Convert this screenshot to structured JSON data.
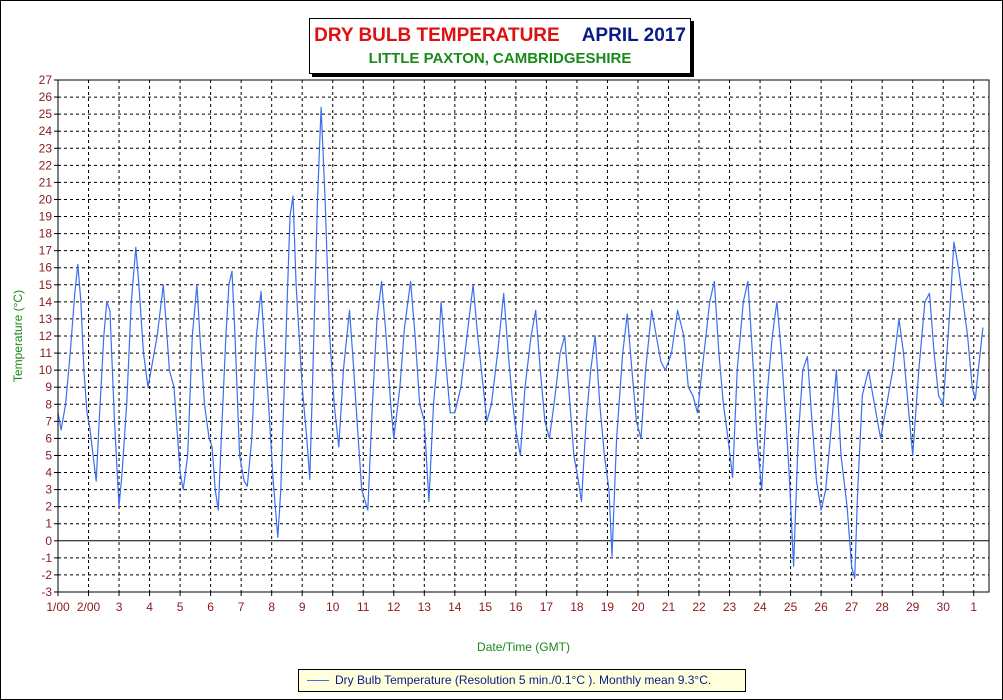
{
  "title": {
    "main": "DRY BULB TEMPERATURE",
    "period": "APRIL 2017",
    "location": "LITTLE PAXTON, CAMBRIDGESHIRE"
  },
  "legend": {
    "label": "Dry Bulb Temperature (Resolution 5 min./0.1°C ). Monthly mean 9.3°C."
  },
  "colors": {
    "series": "#3b6ef0",
    "title_red": "#e01010",
    "title_navy": "#0a1a8a",
    "location_green": "#1a8a1a",
    "axis_label_green": "#1a8a1a",
    "tick_label": "#8b1a1a",
    "legend_bg": "#ffffdc"
  },
  "chart_data": {
    "type": "line",
    "title": "DRY BULB TEMPERATURE APRIL 2017",
    "subtitle": "LITTLE PAXTON, CAMBRIDGESHIRE",
    "xlabel": "Date/Time (GMT)",
    "ylabel": "Temperature (°C)",
    "ylim": [
      -3,
      27
    ],
    "yticks": [
      -3,
      -2,
      -1,
      0,
      1,
      2,
      3,
      4,
      5,
      6,
      7,
      8,
      9,
      10,
      11,
      12,
      13,
      14,
      15,
      16,
      17,
      18,
      19,
      20,
      21,
      22,
      23,
      24,
      25,
      26,
      27
    ],
    "xlim": [
      1,
      31.5
    ],
    "xticks": [
      {
        "x": 1,
        "label": "1/00"
      },
      {
        "x": 2,
        "label": "2/00"
      },
      {
        "x": 3,
        "label": "3"
      },
      {
        "x": 4,
        "label": "4"
      },
      {
        "x": 5,
        "label": "5"
      },
      {
        "x": 6,
        "label": "6"
      },
      {
        "x": 7,
        "label": "7"
      },
      {
        "x": 8,
        "label": "8"
      },
      {
        "x": 9,
        "label": "9"
      },
      {
        "x": 10,
        "label": "10"
      },
      {
        "x": 11,
        "label": "11"
      },
      {
        "x": 12,
        "label": "12"
      },
      {
        "x": 13,
        "label": "13"
      },
      {
        "x": 14,
        "label": "14"
      },
      {
        "x": 15,
        "label": "15"
      },
      {
        "x": 16,
        "label": "16"
      },
      {
        "x": 17,
        "label": "17"
      },
      {
        "x": 18,
        "label": "18"
      },
      {
        "x": 19,
        "label": "19"
      },
      {
        "x": 20,
        "label": "20"
      },
      {
        "x": 21,
        "label": "21"
      },
      {
        "x": 22,
        "label": "22"
      },
      {
        "x": 23,
        "label": "23"
      },
      {
        "x": 24,
        "label": "24"
      },
      {
        "x": 25,
        "label": "25"
      },
      {
        "x": 26,
        "label": "26"
      },
      {
        "x": 27,
        "label": "27"
      },
      {
        "x": 28,
        "label": "28"
      },
      {
        "x": 29,
        "label": "29"
      },
      {
        "x": 30,
        "label": "30"
      },
      {
        "x": 31,
        "label": "1"
      }
    ],
    "grid": true,
    "zero_line": true,
    "series": [
      {
        "name": "Dry Bulb Temperature",
        "points": [
          [
            1.0,
            7.5
          ],
          [
            1.1,
            6.5
          ],
          [
            1.25,
            8.0
          ],
          [
            1.4,
            11.0
          ],
          [
            1.55,
            14.5
          ],
          [
            1.65,
            16.2
          ],
          [
            1.75,
            14.0
          ],
          [
            1.85,
            10.0
          ],
          [
            1.95,
            7.5
          ],
          [
            2.05,
            6.5
          ],
          [
            2.15,
            5.0
          ],
          [
            2.25,
            3.5
          ],
          [
            2.35,
            7.0
          ],
          [
            2.5,
            12.0
          ],
          [
            2.6,
            14.0
          ],
          [
            2.7,
            13.5
          ],
          [
            2.85,
            7.0
          ],
          [
            3.0,
            2.0
          ],
          [
            3.1,
            4.0
          ],
          [
            3.25,
            8.0
          ],
          [
            3.4,
            14.0
          ],
          [
            3.55,
            17.2
          ],
          [
            3.65,
            15.0
          ],
          [
            3.8,
            11.0
          ],
          [
            3.95,
            9.0
          ],
          [
            4.1,
            10.5
          ],
          [
            4.25,
            12.0
          ],
          [
            4.45,
            15.0
          ],
          [
            4.55,
            12.5
          ],
          [
            4.65,
            10.0
          ],
          [
            4.8,
            9.0
          ],
          [
            5.0,
            4.0
          ],
          [
            5.1,
            3.0
          ],
          [
            5.25,
            5.0
          ],
          [
            5.4,
            12.0
          ],
          [
            5.55,
            15.0
          ],
          [
            5.65,
            12.0
          ],
          [
            5.8,
            8.0
          ],
          [
            5.95,
            6.0
          ],
          [
            6.05,
            5.5
          ],
          [
            6.15,
            3.0
          ],
          [
            6.25,
            1.8
          ],
          [
            6.35,
            6.0
          ],
          [
            6.5,
            12.0
          ],
          [
            6.6,
            15.0
          ],
          [
            6.7,
            15.8
          ],
          [
            6.8,
            12.0
          ],
          [
            6.95,
            5.0
          ],
          [
            7.1,
            3.5
          ],
          [
            7.2,
            3.2
          ],
          [
            7.35,
            6.0
          ],
          [
            7.5,
            12.0
          ],
          [
            7.65,
            14.6
          ],
          [
            7.75,
            12.0
          ],
          [
            7.9,
            8.0
          ],
          [
            8.05,
            3.5
          ],
          [
            8.2,
            0.2
          ],
          [
            8.3,
            3.0
          ],
          [
            8.45,
            11.0
          ],
          [
            8.6,
            19.0
          ],
          [
            8.7,
            20.2
          ],
          [
            8.8,
            15.0
          ],
          [
            9.0,
            9.0
          ],
          [
            9.15,
            6.0
          ],
          [
            9.25,
            3.6
          ],
          [
            9.35,
            10.0
          ],
          [
            9.5,
            20.0
          ],
          [
            9.62,
            25.4
          ],
          [
            9.75,
            20.0
          ],
          [
            9.9,
            12.0
          ],
          [
            10.05,
            8.0
          ],
          [
            10.2,
            5.5
          ],
          [
            10.35,
            10.0
          ],
          [
            10.55,
            13.5
          ],
          [
            10.65,
            11.0
          ],
          [
            10.8,
            7.0
          ],
          [
            10.95,
            3.0
          ],
          [
            11.15,
            1.8
          ],
          [
            11.3,
            8.0
          ],
          [
            11.45,
            13.0
          ],
          [
            11.6,
            15.2
          ],
          [
            11.75,
            12.0
          ],
          [
            11.9,
            8.0
          ],
          [
            12.0,
            6.0
          ],
          [
            12.2,
            9.0
          ],
          [
            12.35,
            12.5
          ],
          [
            12.55,
            15.2
          ],
          [
            12.7,
            12.0
          ],
          [
            12.85,
            8.0
          ],
          [
            13.0,
            7.0
          ],
          [
            13.15,
            2.3
          ],
          [
            13.3,
            8.0
          ],
          [
            13.45,
            11.0
          ],
          [
            13.55,
            14.0
          ],
          [
            13.7,
            10.5
          ],
          [
            13.85,
            7.5
          ],
          [
            14.0,
            7.5
          ],
          [
            14.2,
            9.0
          ],
          [
            14.4,
            12.0
          ],
          [
            14.6,
            15.0
          ],
          [
            14.75,
            12.0
          ],
          [
            14.9,
            9.5
          ],
          [
            15.05,
            7.0
          ],
          [
            15.2,
            8.0
          ],
          [
            15.4,
            11.0
          ],
          [
            15.6,
            14.5
          ],
          [
            15.75,
            11.0
          ],
          [
            15.9,
            8.0
          ],
          [
            16.0,
            6.5
          ],
          [
            16.15,
            5.0
          ],
          [
            16.3,
            9.0
          ],
          [
            16.5,
            12.0
          ],
          [
            16.65,
            13.5
          ],
          [
            16.8,
            10.0
          ],
          [
            16.95,
            7.0
          ],
          [
            17.1,
            6.0
          ],
          [
            17.25,
            8.0
          ],
          [
            17.45,
            11.0
          ],
          [
            17.6,
            12.0
          ],
          [
            17.75,
            8.5
          ],
          [
            17.9,
            5.0
          ],
          [
            18.05,
            3.5
          ],
          [
            18.15,
            2.3
          ],
          [
            18.3,
            7.0
          ],
          [
            18.45,
            10.0
          ],
          [
            18.6,
            12.0
          ],
          [
            18.75,
            8.0
          ],
          [
            18.9,
            5.0
          ],
          [
            19.05,
            3.0
          ],
          [
            19.15,
            -0.9
          ],
          [
            19.3,
            6.0
          ],
          [
            19.5,
            11.0
          ],
          [
            19.65,
            13.3
          ],
          [
            19.8,
            10.0
          ],
          [
            19.95,
            7.0
          ],
          [
            20.1,
            6.0
          ],
          [
            20.25,
            10.0
          ],
          [
            20.45,
            13.5
          ],
          [
            20.6,
            12.0
          ],
          [
            20.75,
            10.5
          ],
          [
            20.9,
            10.0
          ],
          [
            21.1,
            11.0
          ],
          [
            21.3,
            13.5
          ],
          [
            21.5,
            12.0
          ],
          [
            21.65,
            9.0
          ],
          [
            21.8,
            8.5
          ],
          [
            21.95,
            7.5
          ],
          [
            22.1,
            10.0
          ],
          [
            22.35,
            14.0
          ],
          [
            22.5,
            15.2
          ],
          [
            22.65,
            11.0
          ],
          [
            22.8,
            8.0
          ],
          [
            22.95,
            6.0
          ],
          [
            23.1,
            3.7
          ],
          [
            23.25,
            10.0
          ],
          [
            23.45,
            14.0
          ],
          [
            23.6,
            15.2
          ],
          [
            23.75,
            11.0
          ],
          [
            23.9,
            6.0
          ],
          [
            24.05,
            3.0
          ],
          [
            24.25,
            9.0
          ],
          [
            24.4,
            12.0
          ],
          [
            24.55,
            14.0
          ],
          [
            24.7,
            11.0
          ],
          [
            24.85,
            7.0
          ],
          [
            24.95,
            4.0
          ],
          [
            25.1,
            -1.5
          ],
          [
            25.25,
            6.0
          ],
          [
            25.4,
            10.0
          ],
          [
            25.55,
            10.8
          ],
          [
            25.7,
            7.0
          ],
          [
            25.85,
            3.5
          ],
          [
            26.0,
            1.8
          ],
          [
            26.15,
            3.0
          ],
          [
            26.3,
            6.0
          ],
          [
            26.5,
            10.0
          ],
          [
            26.65,
            5.0
          ],
          [
            26.85,
            2.0
          ],
          [
            27.0,
            -1.5
          ],
          [
            27.1,
            -2.2
          ],
          [
            27.2,
            3.0
          ],
          [
            27.35,
            8.5
          ],
          [
            27.55,
            10.0
          ],
          [
            27.75,
            8.0
          ],
          [
            27.95,
            6.0
          ],
          [
            28.15,
            8.0
          ],
          [
            28.35,
            10.0
          ],
          [
            28.55,
            13.0
          ],
          [
            28.7,
            11.0
          ],
          [
            28.85,
            8.0
          ],
          [
            29.0,
            5.0
          ],
          [
            29.2,
            10.0
          ],
          [
            29.4,
            14.0
          ],
          [
            29.55,
            14.5
          ],
          [
            29.7,
            11.0
          ],
          [
            29.85,
            8.5
          ],
          [
            30.0,
            8.0
          ],
          [
            30.2,
            13.0
          ],
          [
            30.35,
            17.5
          ],
          [
            30.5,
            16.0
          ],
          [
            30.65,
            14.0
          ],
          [
            30.8,
            12.0
          ],
          [
            30.95,
            9.0
          ],
          [
            31.05,
            8.3
          ],
          [
            31.15,
            10.0
          ],
          [
            31.3,
            12.5
          ]
        ]
      }
    ]
  }
}
